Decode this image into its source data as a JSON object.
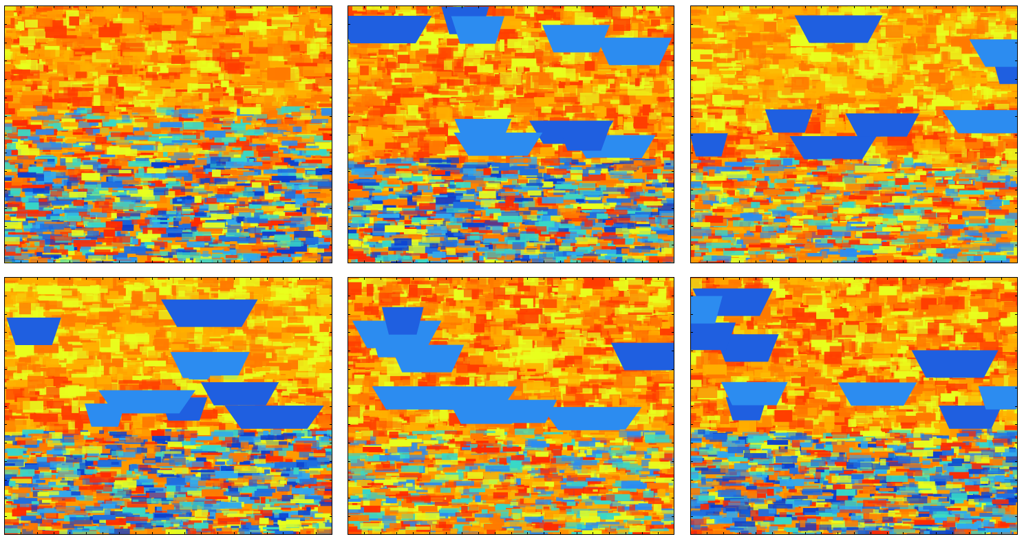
{
  "chart_data": [
    {
      "type": "heatmap",
      "colormap": "jet",
      "title": "",
      "xlabel": "",
      "ylabel": "",
      "grid": false,
      "legend": "none",
      "tick_labels_shown": false,
      "seed": 11,
      "base_colors": [
        "#e8ff1e",
        "#ff7a00",
        "#ff2a00"
      ],
      "bands": [
        [
          0.0,
          0.4,
          "warm"
        ],
        [
          0.4,
          0.6,
          "mixed-warm"
        ],
        [
          0.6,
          1.0,
          "mixed-blue"
        ]
      ]
    },
    {
      "type": "heatmap",
      "colormap": "jet",
      "title": "",
      "xlabel": "",
      "ylabel": "",
      "grid": false,
      "legend": "none",
      "tick_labels_shown": false,
      "seed": 23,
      "base_colors": [
        "#e8ff1e",
        "#ff7a00",
        "#ff2a00"
      ],
      "bands": [
        [
          0.0,
          0.4,
          "blue-troughs"
        ],
        [
          0.4,
          0.6,
          "warm-troughs"
        ],
        [
          0.6,
          1.0,
          "mixed-blue"
        ]
      ]
    },
    {
      "type": "heatmap",
      "colormap": "jet",
      "title": "",
      "xlabel": "",
      "ylabel": "",
      "grid": false,
      "legend": "none",
      "tick_labels_shown": false,
      "seed": 37,
      "base_colors": [
        "#e8ff1e",
        "#ff7a00",
        "#ff2a00"
      ],
      "bands": [
        [
          0.0,
          0.4,
          "blue-waves"
        ],
        [
          0.4,
          0.6,
          "blue-troughs"
        ],
        [
          0.6,
          1.0,
          "mixed-warm"
        ]
      ]
    },
    {
      "type": "heatmap",
      "colormap": "jet",
      "title": "",
      "xlabel": "",
      "ylabel": "",
      "grid": false,
      "legend": "none",
      "tick_labels_shown": false,
      "seed": 41,
      "base_colors": [
        "#e8ff1e",
        "#ff7a00",
        "#ff2a00"
      ],
      "bands": [
        [
          0.0,
          0.4,
          "blue-waves"
        ],
        [
          0.4,
          0.6,
          "blue-troughs"
        ],
        [
          0.6,
          1.0,
          "mixed-blue"
        ]
      ]
    },
    {
      "type": "heatmap",
      "colormap": "jet",
      "title": "",
      "xlabel": "",
      "ylabel": "",
      "grid": false,
      "legend": "none",
      "tick_labels_shown": false,
      "seed": 53,
      "base_colors": [
        "#e8ff1e",
        "#ff7a00",
        "#ff2a00"
      ],
      "bands": [
        [
          0.0,
          0.4,
          "warm-troughs"
        ],
        [
          0.4,
          0.6,
          "warm-troughs"
        ],
        [
          0.6,
          1.0,
          "mixed-warm"
        ]
      ]
    },
    {
      "type": "heatmap",
      "colormap": "jet",
      "title": "",
      "xlabel": "",
      "ylabel": "",
      "grid": false,
      "legend": "none",
      "tick_labels_shown": false,
      "seed": 67,
      "base_colors": [
        "#e8ff1e",
        "#ff7a00",
        "#ff2a00"
      ],
      "bands": [
        [
          0.0,
          0.4,
          "warm-troughs"
        ],
        [
          0.4,
          0.6,
          "warm-troughs"
        ],
        [
          0.6,
          1.0,
          "mixed-blue"
        ]
      ]
    }
  ]
}
